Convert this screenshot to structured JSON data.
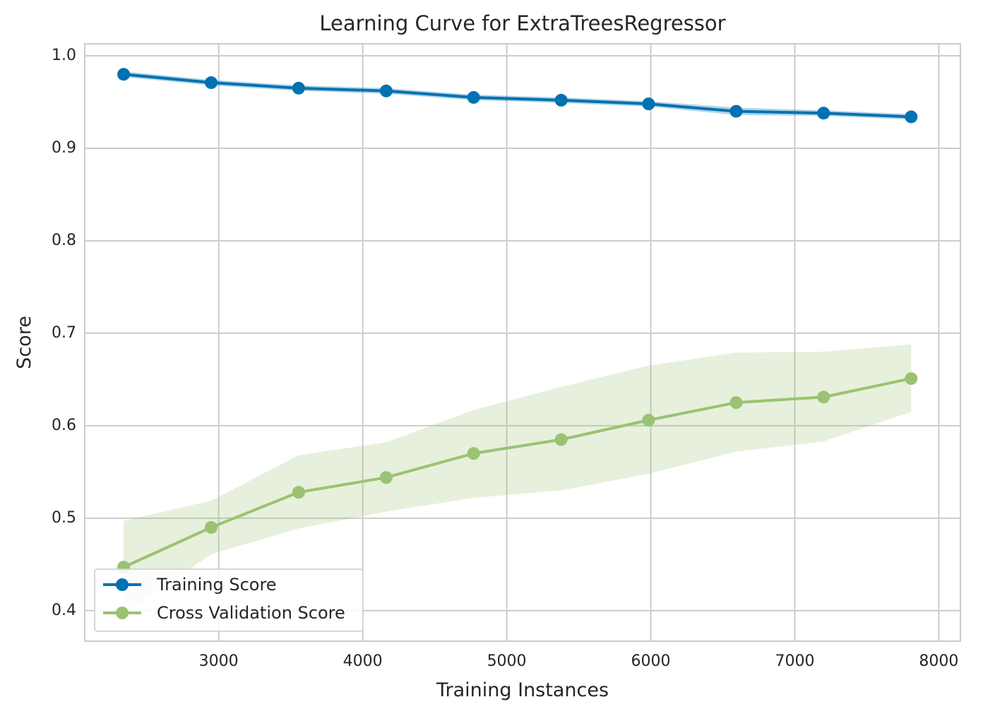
{
  "chart_data": {
    "type": "line",
    "title": "Learning Curve for ExtraTreesRegressor",
    "xlabel": "Training Instances",
    "ylabel": "Score",
    "xlim": [
      2070,
      8150
    ],
    "ylim": [
      0.367,
      1.013
    ],
    "xticks": [
      3000,
      4000,
      5000,
      6000,
      7000,
      8000
    ],
    "yticks": [
      0.4,
      0.5,
      0.6,
      0.7,
      0.8,
      0.9,
      1.0
    ],
    "xtick_labels": [
      "3000",
      "4000",
      "5000",
      "6000",
      "7000",
      "8000"
    ],
    "ytick_labels": [
      "0.4",
      "0.5",
      "0.6",
      "0.7",
      "0.8",
      "0.9",
      "1.0"
    ],
    "grid": true,
    "legend_position": "lower-left",
    "x": [
      2340,
      2948,
      3555,
      4163,
      4770,
      5378,
      5985,
      6593,
      7200,
      7808
    ],
    "series": [
      {
        "name": "Training Score",
        "color": "#0072B2",
        "values": [
          0.98,
          0.971,
          0.965,
          0.962,
          0.955,
          0.952,
          0.948,
          0.94,
          0.938,
          0.934
        ],
        "band_upper": [
          0.983,
          0.974,
          0.968,
          0.965,
          0.958,
          0.955,
          0.951,
          0.944,
          0.941,
          0.937
        ],
        "band_lower": [
          0.977,
          0.968,
          0.962,
          0.959,
          0.952,
          0.949,
          0.945,
          0.936,
          0.935,
          0.931
        ]
      },
      {
        "name": "Cross Validation Score",
        "color": "#9BC272",
        "values": [
          0.447,
          0.49,
          0.528,
          0.544,
          0.57,
          0.585,
          0.606,
          0.625,
          0.631,
          0.651
        ],
        "band_upper": [
          0.497,
          0.519,
          0.568,
          0.582,
          0.617,
          0.642,
          0.665,
          0.679,
          0.68,
          0.688
        ],
        "band_lower": [
          0.397,
          0.461,
          0.489,
          0.507,
          0.522,
          0.53,
          0.548,
          0.572,
          0.583,
          0.615
        ]
      }
    ]
  }
}
